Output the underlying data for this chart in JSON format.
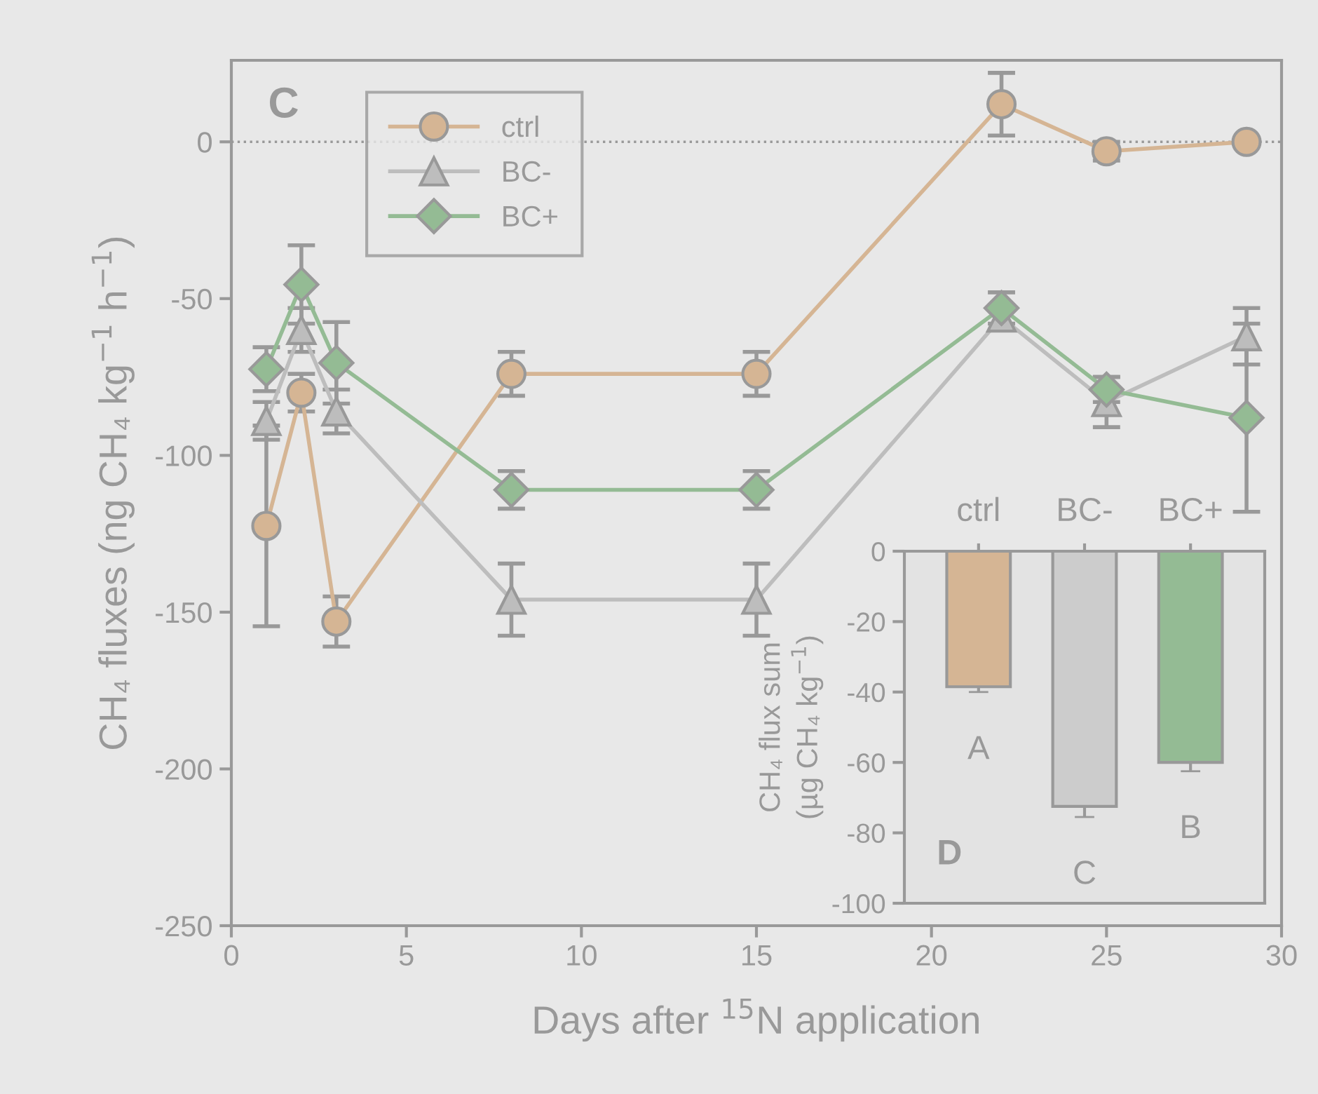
{
  "chart_data": [
    {
      "type": "line",
      "xlabel": "Days after $^{15}$N application",
      "ylabel": "CH₄ fluxes (ng CH₄ kg$^{−1}$ h$^{−1}$)",
      "x": [
        1,
        2,
        3,
        8,
        15,
        22,
        25,
        29
      ],
      "series": [
        {
          "name": "ctrl",
          "color": "#d5b594",
          "marker": "circle",
          "values": [
            -122.5,
            -80,
            -153,
            -74,
            -74,
            12,
            -3,
            0
          ],
          "errors": [
            32,
            6,
            8,
            7,
            7,
            10,
            3,
            1
          ]
        },
        {
          "name": "BC-",
          "color": "#bdbdbd",
          "marker": "triangle",
          "values": [
            -89,
            -60,
            -86,
            -146,
            -146,
            -56,
            -83,
            -62
          ],
          "errors": [
            6,
            7,
            7,
            11.5,
            11.5,
            4,
            8,
            9
          ]
        },
        {
          "name": "BC+",
          "color": "#94bb94",
          "marker": "diamond",
          "values": [
            -72.5,
            -45.5,
            -70.5,
            -111,
            -111,
            -53,
            -79,
            -88
          ],
          "errors": [
            7,
            12.5,
            13,
            6,
            6,
            5,
            4,
            30
          ]
        }
      ],
      "xlim": [
        0,
        30
      ],
      "xticks": [
        0,
        5,
        10,
        15,
        20,
        25,
        30
      ],
      "ylim": [
        -250,
        26
      ],
      "yticks": [
        -250,
        -200,
        -150,
        -100,
        -50,
        0
      ],
      "ref_lines": [
        {
          "axis": "y",
          "value": 0,
          "line_style": "dotted",
          "color": "#999999"
        }
      ],
      "annotations": [
        "C"
      ],
      "legend": "top left",
      "grid": false,
      "line_style": "solid"
    },
    {
      "type": "bar",
      "ylabel": "CH₄ flux sum\n(µg CH₄ kg$^{−1}$)",
      "categories": [
        "ctrl",
        "BC-",
        "BC+"
      ],
      "values": [
        -38.5,
        -72.5,
        -60
      ],
      "errors": [
        1.5,
        3,
        2.5
      ],
      "colors": [
        "#d5b594",
        "#cccccc",
        "#94bb94"
      ],
      "ylim": [
        -100,
        0
      ],
      "yticks": [
        -100,
        -80,
        -60,
        -40,
        -20,
        0
      ],
      "annotations": [
        "D",
        "A",
        "C",
        "B"
      ],
      "grid": false,
      "legend": false
    }
  ]
}
